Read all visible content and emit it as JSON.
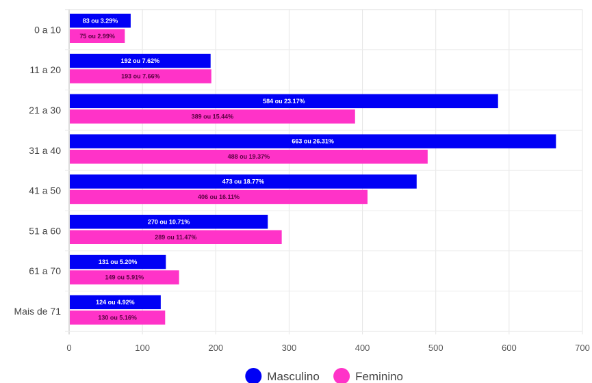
{
  "chart_data": {
    "type": "bar",
    "orientation": "horizontal",
    "categories": [
      "0 a 10",
      "11 a 20",
      "21 a 30",
      "31 a 40",
      "41 a 50",
      "51 a 60",
      "61 a 70",
      "Mais de 71"
    ],
    "series": [
      {
        "name": "Masculino",
        "color": "#0000f5",
        "label_color": "#ffffff",
        "values": [
          83,
          192,
          584,
          663,
          473,
          270,
          131,
          124
        ],
        "labels": [
          "83 ou 3.29%",
          "192 ou 7.62%",
          "584 ou 23.17%",
          "663 ou 26.31%",
          "473 ou 18.77%",
          "270 ou 10.71%",
          "131 ou 5.20%",
          "124 ou 4.92%"
        ]
      },
      {
        "name": "Feminino",
        "color": "#ff33c8",
        "label_color": "#5a0040",
        "values": [
          75,
          193,
          389,
          488,
          406,
          289,
          149,
          130
        ],
        "labels": [
          "75 ou 2.99%",
          "193 ou 7.66%",
          "389 ou 15.44%",
          "488 ou 19.37%",
          "406 ou 16.11%",
          "289 ou 11.47%",
          "149 ou 5.91%",
          "130 ou 5.16%"
        ]
      }
    ],
    "xlim": [
      0,
      700
    ],
    "xticks": [
      0,
      100,
      200,
      300,
      400,
      500,
      600,
      700
    ],
    "grid": true,
    "legend_position": "bottom"
  }
}
